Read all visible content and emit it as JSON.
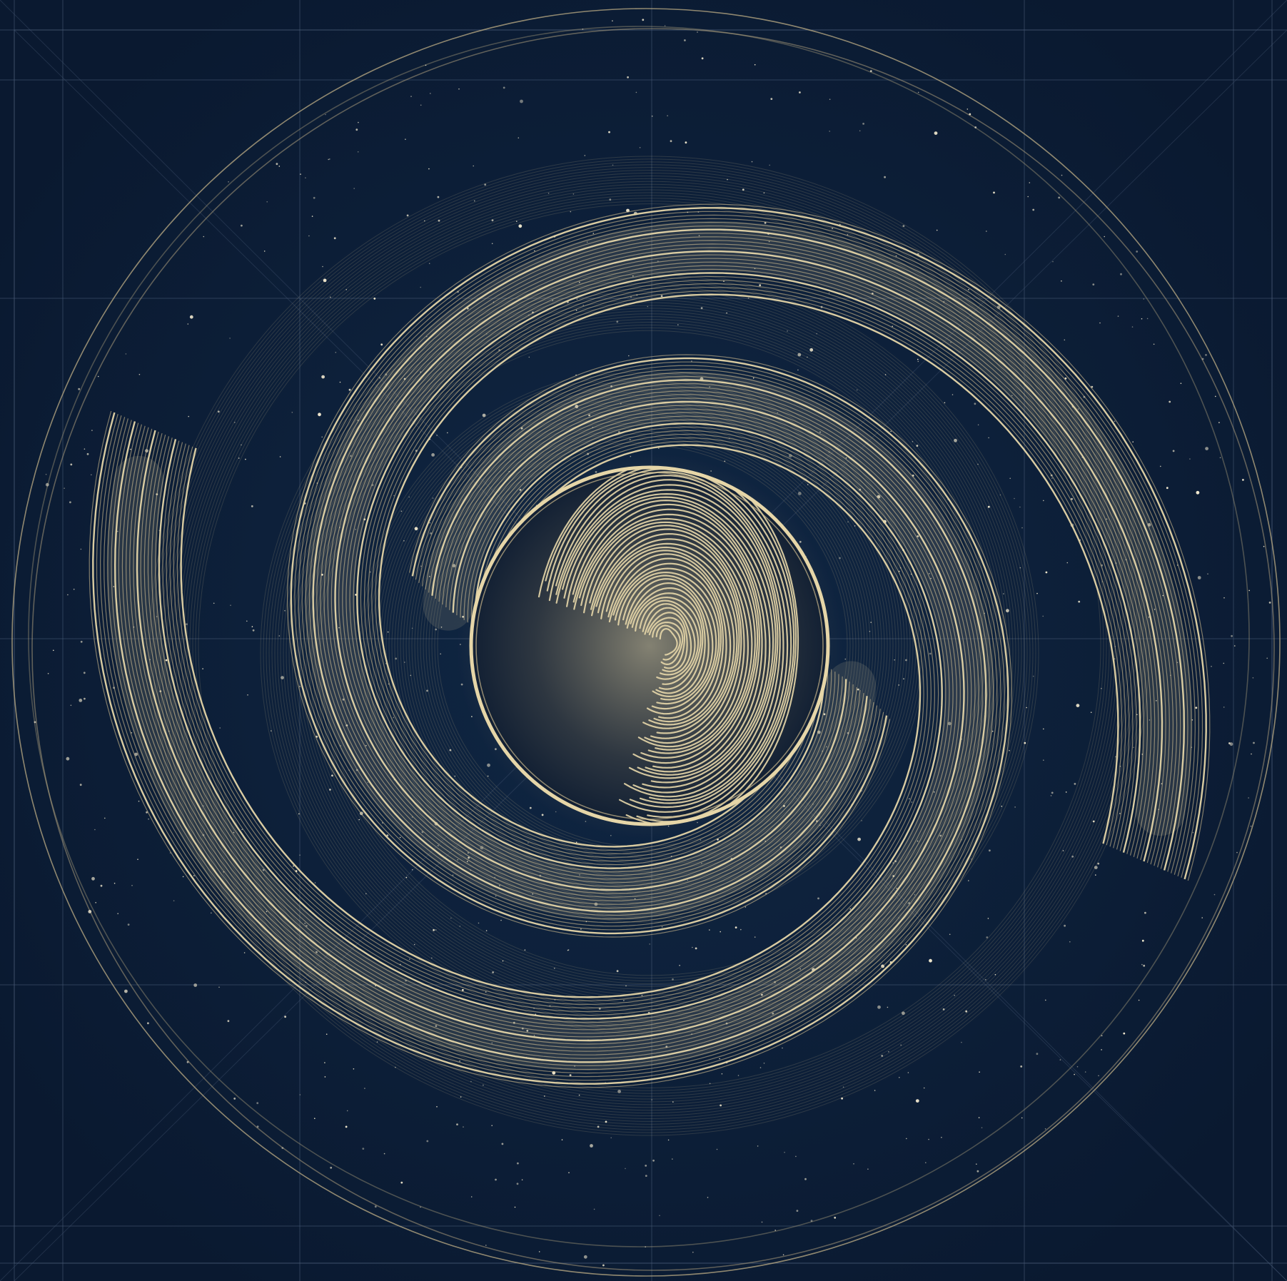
{
  "artwork": {
    "subject": "spiral-galaxy-fingerprint",
    "colors": {
      "background": "#0c1c33",
      "background_center": "#102744",
      "gold": "#c9b68a",
      "gold_bright": "#e6d6a8",
      "gold_dim": "#8c7c58",
      "grid": "#4a5d78",
      "star": "#f3ead0"
    }
  }
}
